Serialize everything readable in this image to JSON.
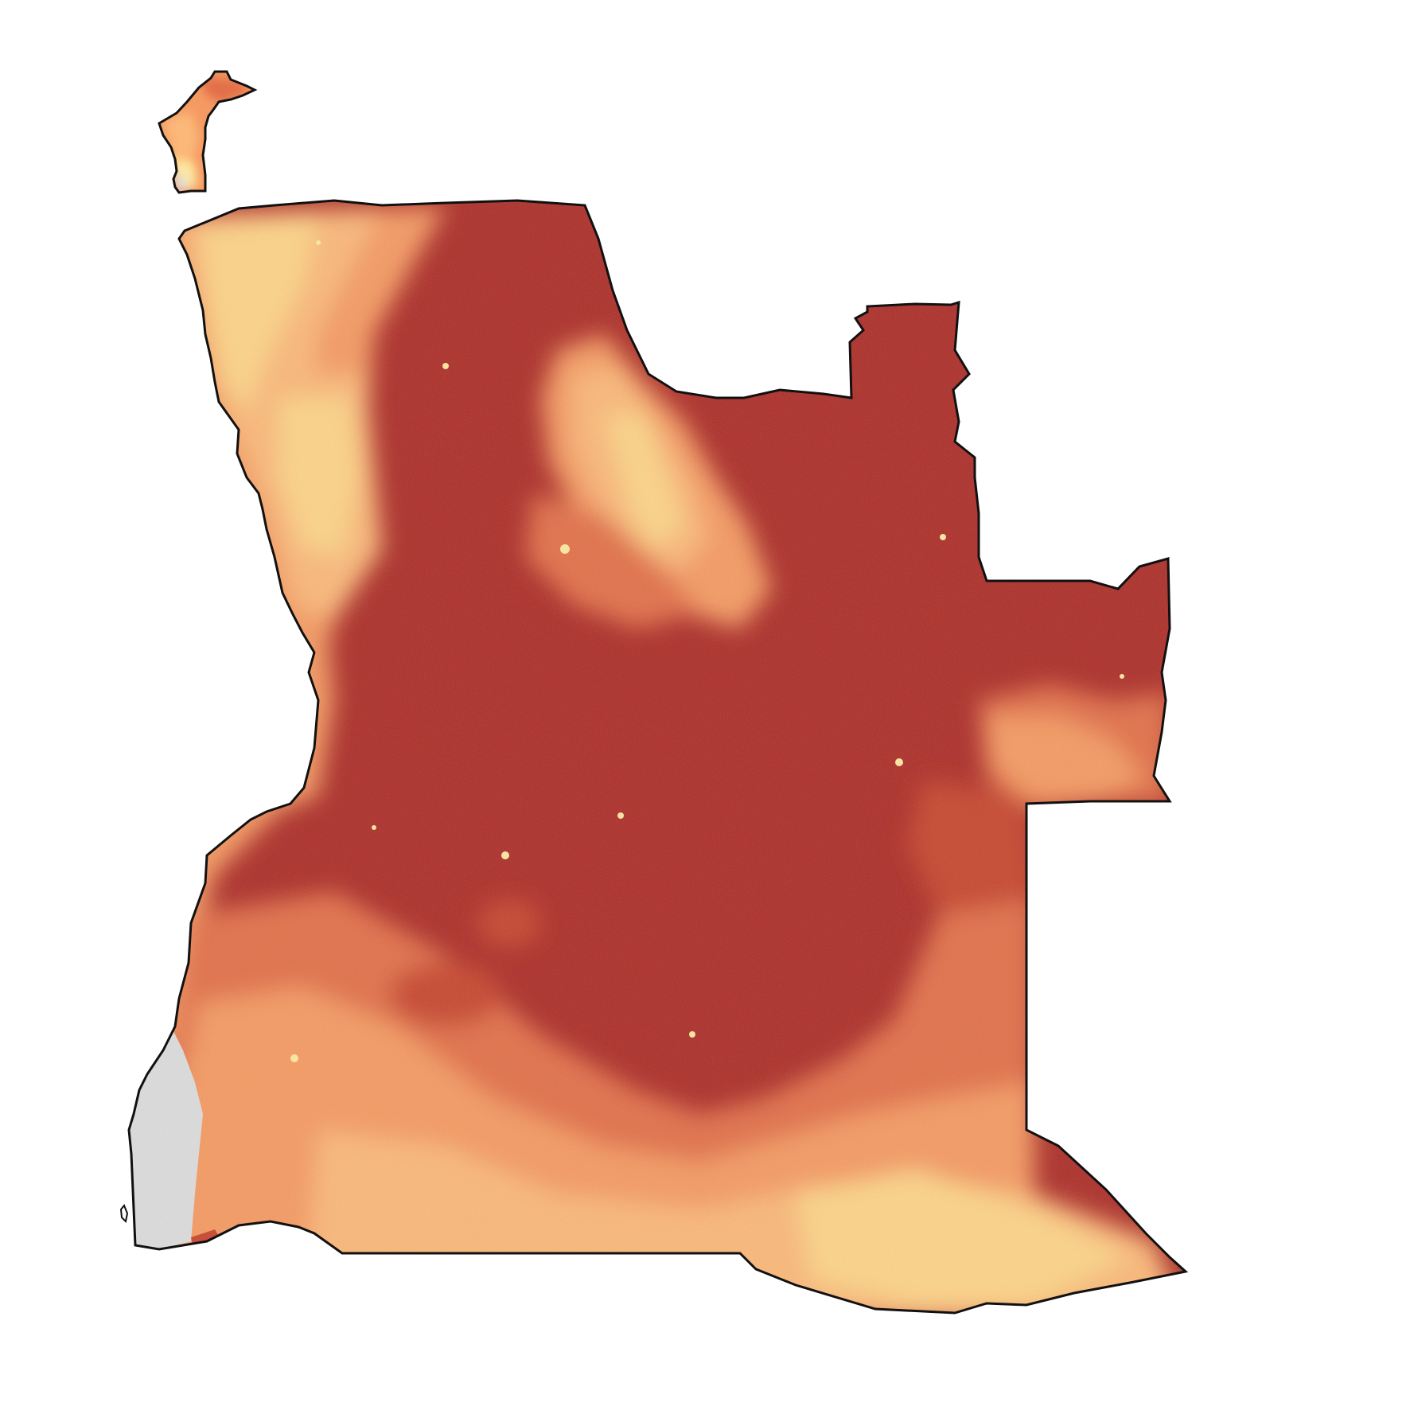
{
  "map": {
    "type": "raster-choropleth",
    "title": "",
    "legend": "",
    "colors": {
      "background": "#ffffff",
      "border": "#111111",
      "very_high": "#ad2e28",
      "high": "#c8462f",
      "medium_high": "#e2704a",
      "medium": "#f59a62",
      "medium_low": "#fbb878",
      "low": "#fdd487",
      "very_low": "#fde8a0",
      "no_data": "#dcdcdc"
    }
  }
}
